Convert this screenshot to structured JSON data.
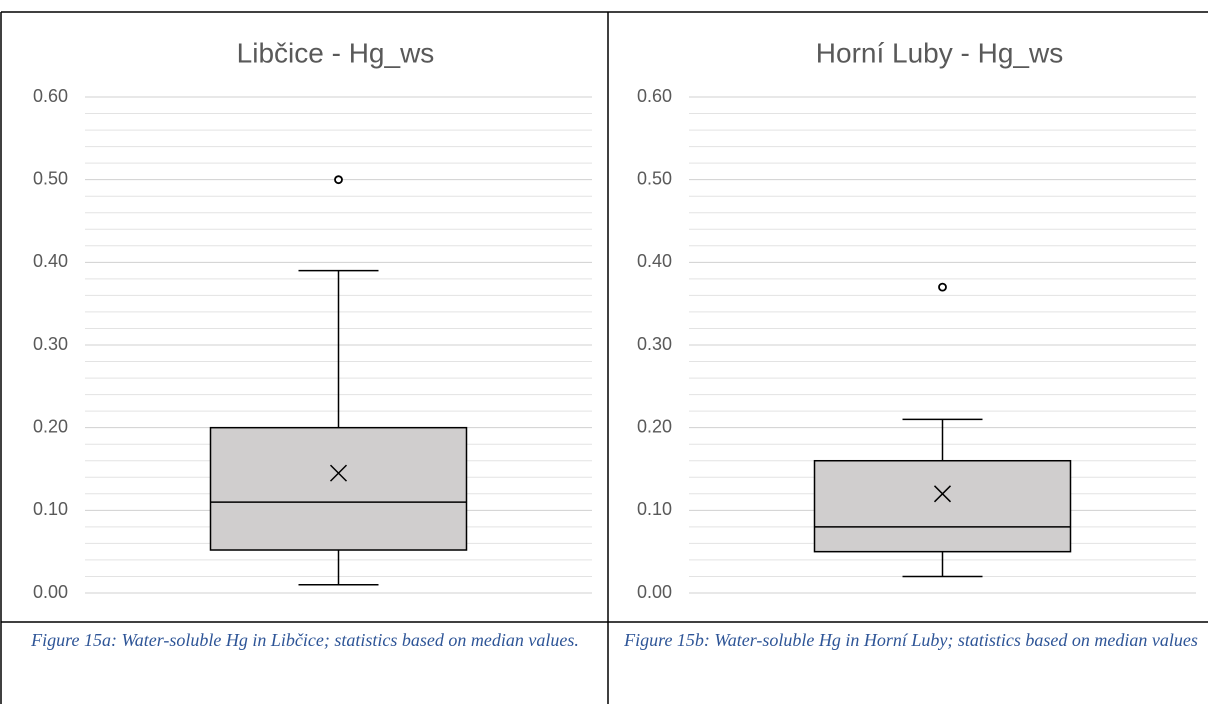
{
  "chart_data": [
    {
      "type": "box",
      "title": "Libčice - Hg_ws",
      "color": "#d0cece",
      "ylim": [
        0,
        0.6
      ],
      "yticks": [
        {
          "value": 0,
          "label": "0.00"
        },
        {
          "value": 0.1,
          "label": "0.10"
        },
        {
          "value": 0.2,
          "label": "0.20"
        },
        {
          "value": 0.3,
          "label": "0.30"
        },
        {
          "value": 0.4,
          "label": "0.40"
        },
        {
          "value": 0.5,
          "label": "0.50"
        },
        {
          "value": 0.6,
          "label": "0.60"
        }
      ],
      "minor_yticks": [
        0.02,
        0.04,
        0.06,
        0.08,
        0.12,
        0.14,
        0.16,
        0.18,
        0.22,
        0.24,
        0.26,
        0.28,
        0.32,
        0.34,
        0.36,
        0.38,
        0.42,
        0.44,
        0.46,
        0.48,
        0.52,
        0.54,
        0.56,
        0.58
      ],
      "boxes": [
        {
          "min": 0.01,
          "q1": 0.052,
          "median": 0.11,
          "q3": 0.2,
          "max": 0.39,
          "mean": 0.145,
          "outliers": [
            0.5
          ]
        }
      ]
    },
    {
      "type": "box",
      "title": "Horní Luby - Hg_ws",
      "color": "#d0cece",
      "ylim": [
        0,
        0.6
      ],
      "yticks": [
        {
          "value": 0,
          "label": "0.00"
        },
        {
          "value": 0.1,
          "label": "0.10"
        },
        {
          "value": 0.2,
          "label": "0.20"
        },
        {
          "value": 0.3,
          "label": "0.30"
        },
        {
          "value": 0.4,
          "label": "0.40"
        },
        {
          "value": 0.5,
          "label": "0.50"
        },
        {
          "value": 0.6,
          "label": "0.60"
        }
      ],
      "minor_yticks": [
        0.02,
        0.04,
        0.06,
        0.08,
        0.12,
        0.14,
        0.16,
        0.18,
        0.22,
        0.24,
        0.26,
        0.28,
        0.32,
        0.34,
        0.36,
        0.38,
        0.42,
        0.44,
        0.46,
        0.48,
        0.52,
        0.54,
        0.56,
        0.58
      ],
      "boxes": [
        {
          "min": 0.02,
          "q1": 0.05,
          "median": 0.08,
          "q3": 0.16,
          "max": 0.21,
          "mean": 0.12,
          "outliers": [
            0.37
          ]
        }
      ]
    }
  ],
  "captions": [
    "Figure 15a: Water-soluble Hg in Libčice; statistics based on median values.",
    "Figure 15b: Water-soluble Hg in Horní Luby; statistics based on median values"
  ]
}
